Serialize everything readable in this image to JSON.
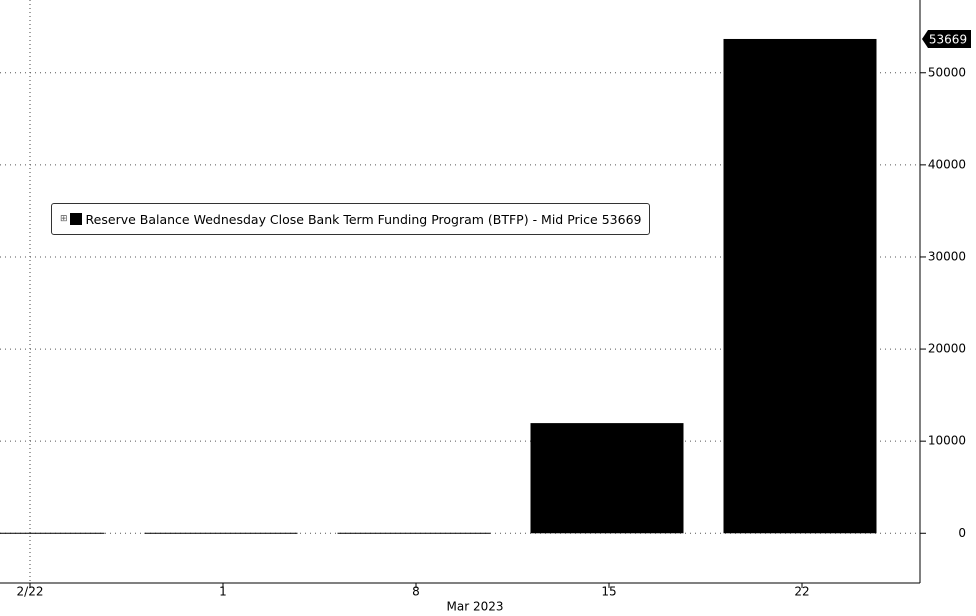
{
  "chart_data": {
    "type": "bar",
    "categories": [
      "2/22",
      "1",
      "8",
      "15",
      "22"
    ],
    "x_period_label": "Mar 2023",
    "series": [
      {
        "name": "Reserve Balance Wednesday Close Bank Term Funding Program (BTFP) - Mid Price",
        "color": "#000000",
        "values": [
          0,
          0,
          0,
          11960,
          53669
        ]
      }
    ],
    "ylim": [
      -5400,
      57900
    ],
    "yticks": [
      0,
      10000,
      20000,
      30000,
      40000,
      50000
    ],
    "grid": true
  }
}
